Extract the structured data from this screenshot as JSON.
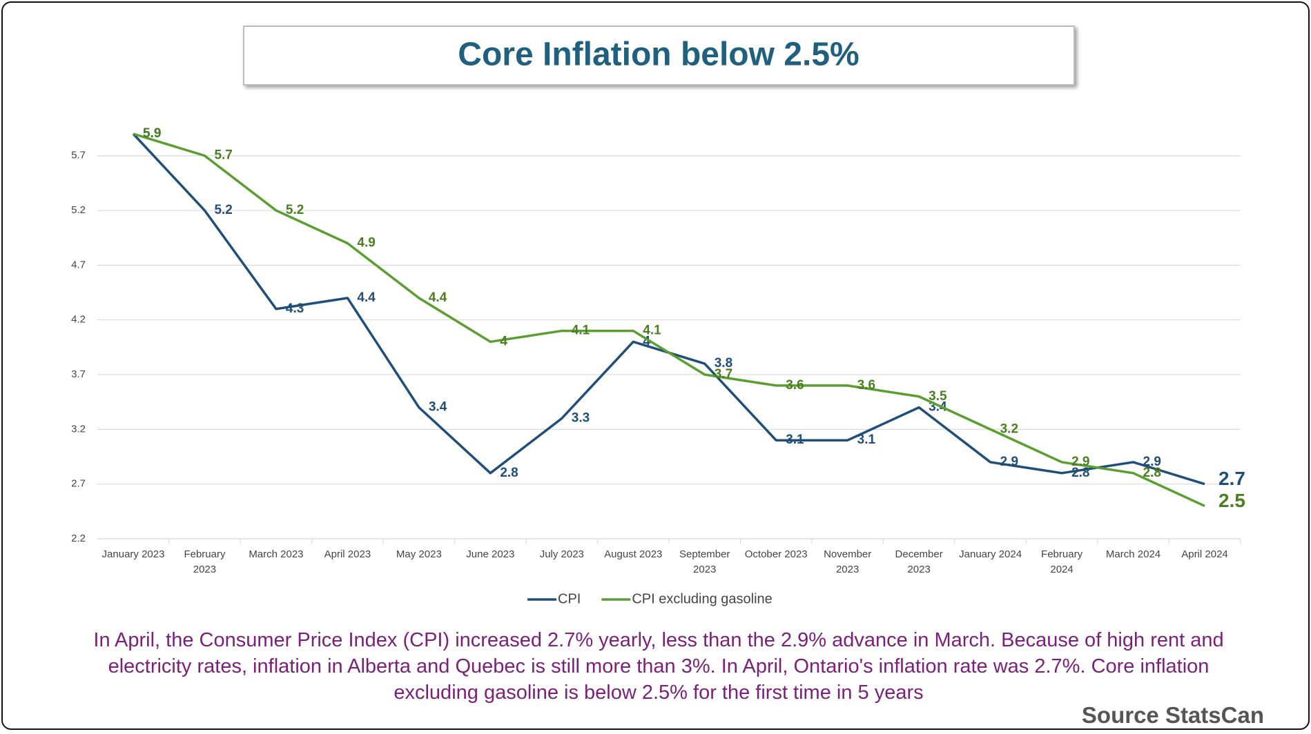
{
  "chart_data": {
    "type": "line",
    "title": "Core Inflation below 2.5%",
    "categories": [
      "January 2023",
      "February 2023",
      "March 2023",
      "April 2023",
      "May 2023",
      "June 2023",
      "July 2023",
      "August 2023",
      "September 2023",
      "October 2023",
      "November 2023",
      "December 2023",
      "January 2024",
      "February 2024",
      "March 2024",
      "April 2024"
    ],
    "series": [
      {
        "name": "CPI",
        "color": "#1f4e79",
        "values": [
          5.9,
          5.2,
          4.3,
          4.4,
          3.4,
          2.8,
          3.3,
          4,
          3.8,
          3.1,
          3.1,
          3.4,
          2.9,
          2.8,
          2.9,
          2.7
        ]
      },
      {
        "name": "CPI excluding gasoline",
        "color": "#5a9e2f",
        "values": [
          5.9,
          5.7,
          5.2,
          4.9,
          4.4,
          4,
          4.1,
          4.1,
          3.7,
          3.6,
          3.6,
          3.5,
          3.2,
          2.9,
          2.8,
          2.5
        ]
      }
    ],
    "ylim": [
      2.2,
      5.9
    ],
    "yticks": [
      2.2,
      2.7,
      3.2,
      3.7,
      4.2,
      4.7,
      5.2,
      5.7
    ],
    "grid": true,
    "legend": "bottom",
    "caption": [
      "In April, the Consumer Price Index (CPI) increased 2.7% yearly, less than the 2.9% advance in March. Because of high rent and",
      "electricity rates, inflation in Alberta and Quebec is still more than 3%. In April, Ontario's inflation rate was 2.7%. Core inflation",
      "excluding gasoline is below 2.5% for the first time in 5 years"
    ],
    "source": "Source StatsCan"
  }
}
